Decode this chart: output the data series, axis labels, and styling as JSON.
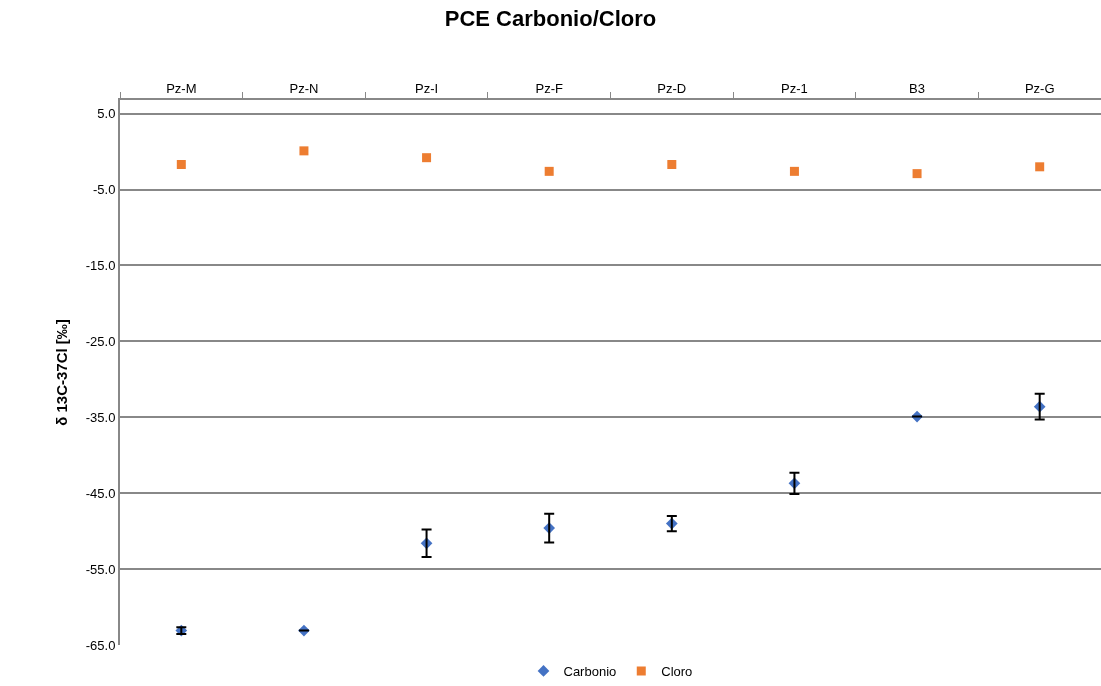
{
  "chart_data": {
    "type": "scatter",
    "title": "PCE Carbonio/Cloro",
    "ylabel": "δ 13C-37Cl [‰]",
    "categories": [
      "Pz-M",
      "Pz-N",
      "Pz-I",
      "Pz-F",
      "Pz-D",
      "Pz-1",
      "B3",
      "Pz-G"
    ],
    "series": [
      {
        "name": "Carbonio",
        "color": "#4472c4",
        "marker": "diamond",
        "values": [
          -63.1,
          -63.1,
          -51.6,
          -49.6,
          -49.0,
          -43.7,
          -34.9,
          -33.6
        ],
        "errors": [
          0.45,
          null,
          1.8,
          1.9,
          1.0,
          1.4,
          null,
          1.7
        ]
      },
      {
        "name": "Cloro",
        "color": "#ed7d31",
        "marker": "square",
        "values": [
          -1.7,
          0.1,
          -0.8,
          -2.6,
          -1.7,
          -2.6,
          -2.9,
          -2.0
        ]
      }
    ],
    "ylim": [
      -65,
      6.8
    ],
    "yticks": [
      {
        "value": 5,
        "label": "5.0"
      },
      {
        "value": -5,
        "label": "-5.0"
      },
      {
        "value": -15,
        "label": "-15.0"
      },
      {
        "value": -25,
        "label": "-25.0"
      },
      {
        "value": -35,
        "label": "-35.0"
      },
      {
        "value": -45,
        "label": "-45.0"
      },
      {
        "value": -55,
        "label": "-55.0"
      },
      {
        "value": -65,
        "label": "-65.0"
      }
    ],
    "grid": "y",
    "legend": "bottom"
  }
}
